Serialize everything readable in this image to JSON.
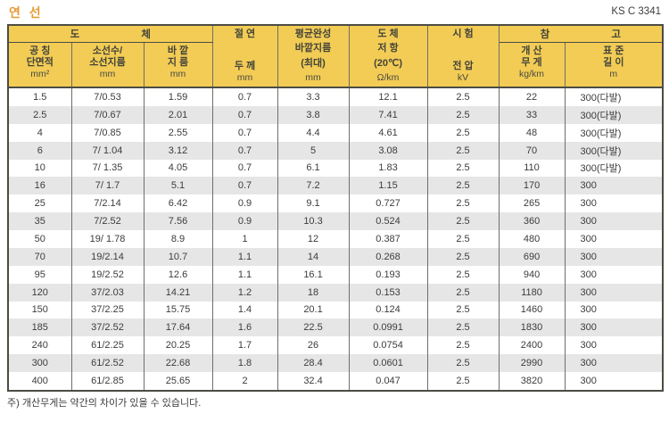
{
  "page": {
    "title": "연 선",
    "standard": "KS C 3341",
    "footnote": "주) 개산무게는 약간의 차이가 있을 수 있습니다."
  },
  "colors": {
    "header_bg": "#F2CC55",
    "title_orange": "#E79A33",
    "row_stripe": "#E6E6E6",
    "border_dark": "#4C4C44",
    "border_inner": "#6F6F67",
    "text": "#3C3C3C"
  },
  "table": {
    "groups": [
      {
        "label": "도 체"
      },
      {
        "label": "참 고"
      }
    ],
    "columns": [
      {
        "lines": [
          "공 칭",
          "단면적"
        ],
        "unit": "mm²"
      },
      {
        "lines": [
          "소선수/",
          "소선지름"
        ],
        "unit": "mm"
      },
      {
        "lines": [
          "바 깥",
          "지 름"
        ],
        "unit": "mm"
      },
      {
        "lines": [
          "절 연",
          "두 께"
        ],
        "unit": "mm"
      },
      {
        "lines": [
          "평균완성",
          "바깥지름",
          "(최대)"
        ],
        "unit": "mm"
      },
      {
        "lines": [
          "도 체",
          "저 항",
          "(20℃)"
        ],
        "unit": "Ω/km"
      },
      {
        "lines": [
          "시 험",
          "전 압"
        ],
        "unit": "kV"
      },
      {
        "lines": [
          "개 산",
          "무 게"
        ],
        "unit": "kg/km"
      },
      {
        "lines": [
          "표 준",
          "길 이"
        ],
        "unit": "m"
      }
    ],
    "rows": [
      [
        "1.5",
        "7/0.53",
        "1.59",
        "0.7",
        "3.3",
        "12.1",
        "2.5",
        "22",
        "300(다발)"
      ],
      [
        "2.5",
        "7/0.67",
        "2.01",
        "0.7",
        "3.8",
        "7.41",
        "2.5",
        "33",
        "300(다발)"
      ],
      [
        "4",
        "7/0.85",
        "2.55",
        "0.7",
        "4.4",
        "4.61",
        "2.5",
        "48",
        "300(다발)"
      ],
      [
        "6",
        "7/ 1.04",
        "3.12",
        "0.7",
        "5",
        "3.08",
        "2.5",
        "70",
        "300(다발)"
      ],
      [
        "10",
        "7/ 1.35",
        "4.05",
        "0.7",
        "6.1",
        "1.83",
        "2.5",
        "110",
        "300(다발)"
      ],
      [
        "16",
        "7/ 1.7",
        "5.1",
        "0.7",
        "7.2",
        "1.15",
        "2.5",
        "170",
        "300"
      ],
      [
        "25",
        "7/2.14",
        "6.42",
        "0.9",
        "9.1",
        "0.727",
        "2.5",
        "265",
        "300"
      ],
      [
        "35",
        "7/2.52",
        "7.56",
        "0.9",
        "10.3",
        "0.524",
        "2.5",
        "360",
        "300"
      ],
      [
        "50",
        "19/ 1.78",
        "8.9",
        "1",
        "12",
        "0.387",
        "2.5",
        "480",
        "300"
      ],
      [
        "70",
        "19/2.14",
        "10.7",
        "1.1",
        "14",
        "0.268",
        "2.5",
        "690",
        "300"
      ],
      [
        "95",
        "19/2.52",
        "12.6",
        "1.1",
        "16.1",
        "0.193",
        "2.5",
        "940",
        "300"
      ],
      [
        "120",
        "37/2.03",
        "14.21",
        "1.2",
        "18",
        "0.153",
        "2.5",
        "1180",
        "300"
      ],
      [
        "150",
        "37/2.25",
        "15.75",
        "1.4",
        "20.1",
        "0.124",
        "2.5",
        "1460",
        "300"
      ],
      [
        "185",
        "37/2.52",
        "17.64",
        "1.6",
        "22.5",
        "0.0991",
        "2.5",
        "1830",
        "300"
      ],
      [
        "240",
        "61/2.25",
        "20.25",
        "1.7",
        "26",
        "0.0754",
        "2.5",
        "2400",
        "300"
      ],
      [
        "300",
        "61/2.52",
        "22.68",
        "1.8",
        "28.4",
        "0.0601",
        "2.5",
        "2990",
        "300"
      ],
      [
        "400",
        "61/2.85",
        "25.65",
        "2",
        "32.4",
        "0.047",
        "2.5",
        "3820",
        "300"
      ]
    ]
  }
}
